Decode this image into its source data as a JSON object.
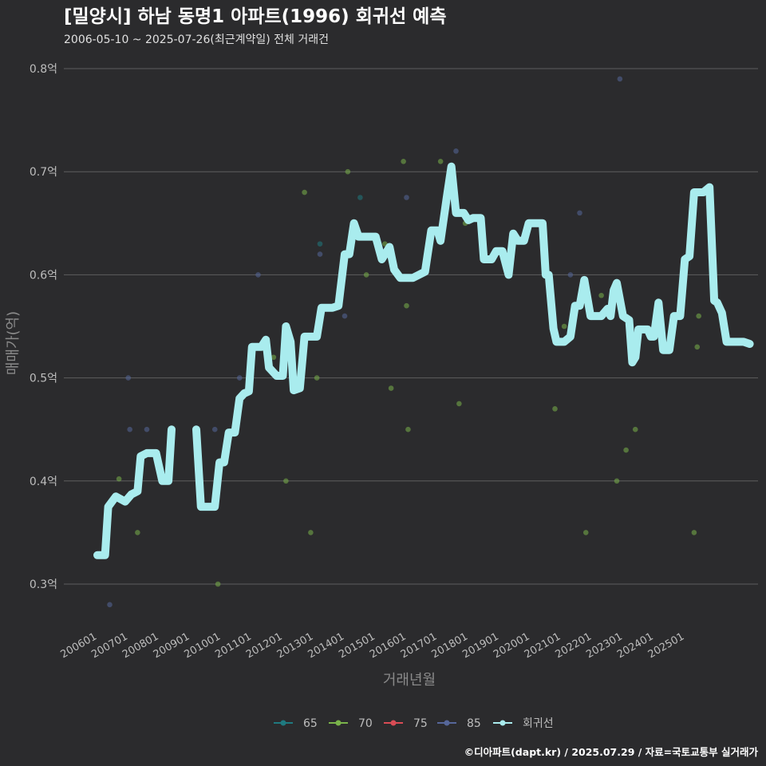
{
  "chart_data": {
    "type": "scatter",
    "title": "[밀양시] 하남 동명1 아파트(1996) 회귀선 예측",
    "subtitle": "2006-05-10 ~ 2025-07-26(최근계약일) 전체 거래건",
    "xlabel": "거래년월",
    "ylabel": "매매가(억)",
    "ylim": [
      0.25,
      0.82
    ],
    "y_ticks": [
      {
        "value": 0.3,
        "label": "0.3억"
      },
      {
        "value": 0.4,
        "label": "0.4억"
      },
      {
        "value": 0.5,
        "label": "0.5억"
      },
      {
        "value": 0.6,
        "label": "0.6억"
      },
      {
        "value": 0.7,
        "label": "0.7억"
      },
      {
        "value": 0.8,
        "label": "0.8억"
      }
    ],
    "x_ticks": [
      "200601",
      "200701",
      "200801",
      "200901",
      "201001",
      "201101",
      "201201",
      "201301",
      "201401",
      "201501",
      "201601",
      "201701",
      "201801",
      "201901",
      "202001",
      "202101",
      "202201",
      "202301",
      "202401",
      "202501"
    ],
    "grid": true,
    "legend_position": "bottom",
    "series": [
      {
        "name": "65",
        "color": "#1f7a80",
        "points": [
          [
            2013.2,
            0.63
          ],
          [
            2014.5,
            0.675
          ]
        ]
      },
      {
        "name": "70",
        "color": "#7ab34a",
        "points": [
          [
            2006.7,
            0.402
          ],
          [
            2007.3,
            0.35
          ],
          [
            2009.9,
            0.3
          ],
          [
            2010.9,
            0.49
          ],
          [
            2011.7,
            0.52
          ],
          [
            2012.1,
            0.4
          ],
          [
            2012.7,
            0.68
          ],
          [
            2012.9,
            0.35
          ],
          [
            2013.1,
            0.5
          ],
          [
            2014.1,
            0.7
          ],
          [
            2014.3,
            0.65
          ],
          [
            2014.7,
            0.6
          ],
          [
            2015.3,
            0.63
          ],
          [
            2015.5,
            0.49
          ],
          [
            2015.9,
            0.71
          ],
          [
            2016.0,
            0.57
          ],
          [
            2016.05,
            0.45
          ],
          [
            2017.1,
            0.71
          ],
          [
            2017.7,
            0.475
          ],
          [
            2017.9,
            0.65
          ],
          [
            2020.8,
            0.47
          ],
          [
            2021.1,
            0.55
          ],
          [
            2021.8,
            0.35
          ],
          [
            2022.3,
            0.58
          ],
          [
            2022.8,
            0.4
          ],
          [
            2023.1,
            0.43
          ],
          [
            2023.4,
            0.45
          ],
          [
            2025.3,
            0.35
          ],
          [
            2025.45,
            0.56
          ],
          [
            2025.4,
            0.53
          ]
        ]
      },
      {
        "name": "75",
        "color": "#d94c55",
        "points": []
      },
      {
        "name": "85",
        "color": "#56679a",
        "points": [
          [
            2006.4,
            0.28
          ],
          [
            2007.0,
            0.5
          ],
          [
            2007.05,
            0.45
          ],
          [
            2007.6,
            0.45
          ],
          [
            2009.8,
            0.45
          ],
          [
            2010.6,
            0.5
          ],
          [
            2011.2,
            0.6
          ],
          [
            2013.2,
            0.62
          ],
          [
            2014.0,
            0.56
          ],
          [
            2016.0,
            0.675
          ],
          [
            2017.6,
            0.72
          ],
          [
            2021.3,
            0.6
          ],
          [
            2021.6,
            0.66
          ],
          [
            2022.9,
            0.79
          ],
          [
            2025.2,
            0.63
          ]
        ]
      }
    ],
    "regression": {
      "name": "회귀선",
      "color": "#a9ecee",
      "segments": [
        [
          [
            2006.0,
            0.328
          ],
          [
            2006.25,
            0.328
          ],
          [
            2006.35,
            0.375
          ],
          [
            2006.6,
            0.385
          ],
          [
            2006.9,
            0.38
          ],
          [
            2007.1,
            0.387
          ],
          [
            2007.3,
            0.39
          ],
          [
            2007.4,
            0.424
          ],
          [
            2007.6,
            0.427
          ],
          [
            2007.9,
            0.427
          ],
          [
            2008.1,
            0.4
          ],
          [
            2008.3,
            0.4
          ],
          [
            2008.4,
            0.45
          ]
        ],
        [
          [
            2009.2,
            0.45
          ],
          [
            2009.35,
            0.375
          ],
          [
            2009.8,
            0.375
          ],
          [
            2009.95,
            0.418
          ],
          [
            2010.1,
            0.418
          ],
          [
            2010.25,
            0.447
          ],
          [
            2010.45,
            0.447
          ],
          [
            2010.6,
            0.48
          ],
          [
            2010.75,
            0.485
          ],
          [
            2010.9,
            0.487
          ],
          [
            2011.0,
            0.53
          ],
          [
            2011.3,
            0.53
          ],
          [
            2011.45,
            0.537
          ],
          [
            2011.55,
            0.51
          ],
          [
            2011.8,
            0.502
          ],
          [
            2012.0,
            0.502
          ],
          [
            2012.1,
            0.55
          ],
          [
            2012.25,
            0.535
          ],
          [
            2012.35,
            0.488
          ],
          [
            2012.55,
            0.49
          ],
          [
            2012.7,
            0.54
          ],
          [
            2013.1,
            0.54
          ],
          [
            2013.25,
            0.568
          ],
          [
            2013.6,
            0.568
          ],
          [
            2013.8,
            0.57
          ],
          [
            2014.0,
            0.62
          ],
          [
            2014.15,
            0.62
          ],
          [
            2014.3,
            0.65
          ],
          [
            2014.45,
            0.637
          ],
          [
            2015.0,
            0.637
          ],
          [
            2015.2,
            0.615
          ],
          [
            2015.45,
            0.627
          ],
          [
            2015.6,
            0.605
          ],
          [
            2015.8,
            0.597
          ],
          [
            2016.2,
            0.597
          ],
          [
            2016.4,
            0.6
          ],
          [
            2016.6,
            0.603
          ],
          [
            2016.8,
            0.643
          ],
          [
            2017.0,
            0.643
          ],
          [
            2017.1,
            0.633
          ],
          [
            2017.3,
            0.675
          ],
          [
            2017.45,
            0.705
          ],
          [
            2017.6,
            0.66
          ],
          [
            2017.85,
            0.66
          ],
          [
            2018.0,
            0.653
          ],
          [
            2018.15,
            0.655
          ],
          [
            2018.4,
            0.655
          ],
          [
            2018.5,
            0.615
          ],
          [
            2018.75,
            0.615
          ],
          [
            2018.9,
            0.623
          ],
          [
            2019.1,
            0.623
          ],
          [
            2019.3,
            0.6
          ],
          [
            2019.45,
            0.64
          ],
          [
            2019.6,
            0.633
          ],
          [
            2019.8,
            0.633
          ],
          [
            2019.95,
            0.65
          ],
          [
            2020.4,
            0.65
          ],
          [
            2020.5,
            0.6
          ],
          [
            2020.6,
            0.6
          ],
          [
            2020.75,
            0.548
          ],
          [
            2020.85,
            0.535
          ],
          [
            2021.1,
            0.535
          ],
          [
            2021.3,
            0.54
          ],
          [
            2021.45,
            0.57
          ],
          [
            2021.6,
            0.57
          ],
          [
            2021.75,
            0.595
          ],
          [
            2021.95,
            0.56
          ],
          [
            2022.3,
            0.56
          ],
          [
            2022.5,
            0.567
          ],
          [
            2022.6,
            0.56
          ],
          [
            2022.7,
            0.585
          ],
          [
            2022.8,
            0.592
          ],
          [
            2023.0,
            0.56
          ],
          [
            2023.2,
            0.556
          ],
          [
            2023.3,
            0.515
          ],
          [
            2023.4,
            0.52
          ],
          [
            2023.5,
            0.547
          ],
          [
            2023.8,
            0.547
          ],
          [
            2023.9,
            0.54
          ],
          [
            2024.0,
            0.54
          ],
          [
            2024.15,
            0.573
          ],
          [
            2024.3,
            0.527
          ],
          [
            2024.5,
            0.527
          ],
          [
            2024.65,
            0.56
          ],
          [
            2024.85,
            0.56
          ],
          [
            2025.0,
            0.615
          ],
          [
            2025.15,
            0.618
          ],
          [
            2025.3,
            0.68
          ],
          [
            2025.6,
            0.68
          ],
          [
            2025.8,
            0.685
          ],
          [
            2025.95,
            0.575
          ],
          [
            2026.05,
            0.573
          ],
          [
            2026.2,
            0.563
          ],
          [
            2026.35,
            0.535
          ],
          [
            2026.9,
            0.535
          ],
          [
            2027.1,
            0.533
          ]
        ]
      ]
    }
  },
  "legend_items": [
    {
      "label": "65",
      "color": "#1f7a80"
    },
    {
      "label": "70",
      "color": "#7ab34a"
    },
    {
      "label": "75",
      "color": "#d94c55"
    },
    {
      "label": "85",
      "color": "#56679a"
    },
    {
      "label": "회귀선",
      "color": "#a9ecee"
    }
  ],
  "caption": "©디아파트(dapt.kr) / 2025.07.29 / 자료=국토교통부 실거래가"
}
